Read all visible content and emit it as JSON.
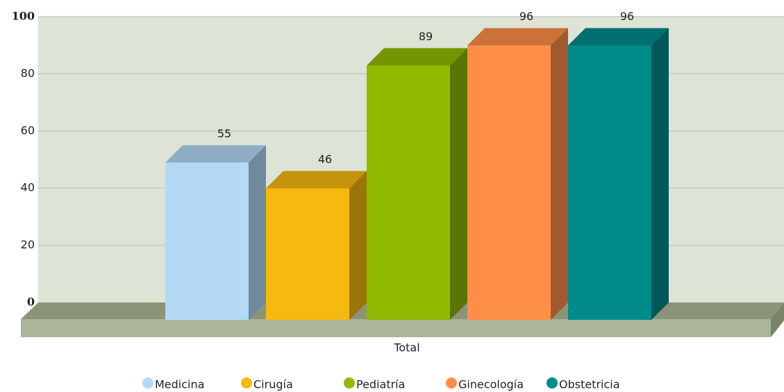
{
  "chart_data": {
    "type": "bar3d",
    "categories": [
      "Total"
    ],
    "series": [
      {
        "name": "Medicina",
        "color": "#b3d9f7",
        "values": [
          55
        ]
      },
      {
        "name": "Cirugía",
        "color": "#f5b90f",
        "values": [
          46
        ]
      },
      {
        "name": "Pediatría",
        "color": "#8fba00",
        "values": [
          89
        ]
      },
      {
        "name": "Ginecología",
        "color": "#ff8f47",
        "values": [
          96
        ]
      },
      {
        "name": "Obstetricia",
        "color": "#008b8b",
        "values": [
          96
        ]
      }
    ],
    "ylim": [
      0,
      100
    ],
    "yticks": [
      0,
      20,
      40,
      60,
      80,
      100
    ],
    "grid": true,
    "legend": "bottom"
  }
}
